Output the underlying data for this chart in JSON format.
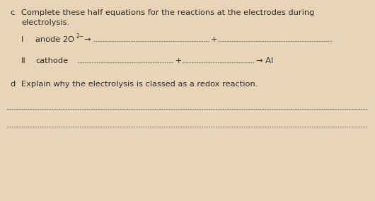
{
  "bg_color": "#e8d5b8",
  "text_color": "#2a2a2a",
  "dot_color": "#888877",
  "font_size_main": 8.2,
  "font_size_super": 5.5,
  "c_label": "c",
  "line1": "Complete these half equations for the reactions at the electrodes during",
  "line2": "electrolysis.",
  "i_label": "I",
  "ii_label": "II",
  "d_label": "d",
  "anode_prefix": "anode 2O",
  "anode_super": "2−",
  "cathode_prefix": "cathode",
  "arrow": "→",
  "al_text": " Al",
  "plus": "+",
  "explain": "Explain why the electrolysis is classed as a redox reaction."
}
